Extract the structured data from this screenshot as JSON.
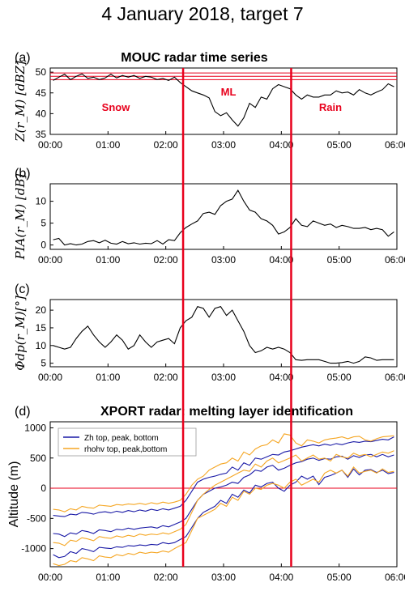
{
  "figure": {
    "title": "4 January 2018, target 7"
  },
  "colors": {
    "red": "#e8001c",
    "blue": "#1a1aa6",
    "orange": "#f5a623",
    "black": "#000000"
  },
  "panels": [
    {
      "id": "a",
      "letter": "(a)",
      "title": "MOUC radar time series",
      "ylabel": "Z(r_M) [dBZ]",
      "yticks": [
        "35",
        "40",
        "45",
        "50"
      ],
      "annotations": [
        "Snow",
        "ML",
        "Rain"
      ]
    },
    {
      "id": "b",
      "letter": "(b)",
      "title": "",
      "ylabel": "PIA(r_M) [dB]",
      "yticks": [
        "0",
        "5",
        "10"
      ]
    },
    {
      "id": "c",
      "letter": "(c)",
      "title": "",
      "ylabel": "Φdp(r_M)[°]",
      "yticks": [
        "5",
        "10",
        "15",
        "20"
      ]
    },
    {
      "id": "d",
      "letter": "(d)",
      "title": "XPORT radar: melting  layer identification",
      "ylabel": "Altitude (m)",
      "yticks": [
        "-1000",
        "-500",
        "0",
        "500",
        "1000"
      ],
      "legend": [
        "Zh top, peak, bottom",
        "rhohv  top, peak,bottom"
      ]
    }
  ],
  "xticks": [
    "00:00",
    "01:00",
    "02:00",
    "03:00",
    "04:00",
    "05:00",
    "06:00"
  ],
  "chart_data": [
    {
      "type": "line",
      "panel": "a",
      "title": "MOUC radar time series",
      "xlabel": "",
      "ylabel": "Z(r_M) [dBZ]",
      "xlim": [
        0,
        6
      ],
      "ylim": [
        35,
        51
      ],
      "grid": false,
      "series": [
        {
          "x": [
            0.05,
            0.15,
            0.25,
            0.35,
            0.45,
            0.55,
            0.65,
            0.75,
            0.85,
            0.95,
            1.05,
            1.15,
            1.25,
            1.35,
            1.45,
            1.55,
            1.65,
            1.75,
            1.85,
            1.95,
            2.05,
            2.15,
            2.25,
            2.35,
            2.45,
            2.55,
            2.65,
            2.75,
            2.85,
            2.95,
            3.05,
            3.15,
            3.25,
            3.35,
            3.45,
            3.55,
            3.65,
            3.75,
            3.85,
            3.95,
            4.05,
            4.15,
            4.25,
            4.35,
            4.45,
            4.55,
            4.65,
            4.75,
            4.85,
            4.95,
            5.05,
            5.15,
            5.25,
            5.35,
            5.45,
            5.55,
            5.65,
            5.75,
            5.85,
            5.95
          ],
          "y": [
            48,
            48.8,
            49.5,
            48.2,
            49,
            49.6,
            48.5,
            48.8,
            48.2,
            48.6,
            49.5,
            48.6,
            49.2,
            48.8,
            49.2,
            48.5,
            49,
            48.8,
            48.2,
            48.5,
            48,
            48.8,
            47.5,
            46.5,
            45.5,
            45,
            44.5,
            43.8,
            40.5,
            39.5,
            40.2,
            38.5,
            37,
            39,
            42.5,
            41.5,
            44,
            43.5,
            46,
            47,
            46.5,
            46,
            44.5,
            43.5,
            44.5,
            44,
            44,
            44.5,
            44.5,
            45.5,
            45,
            45.2,
            44.5,
            45.8,
            45,
            44.5,
            45.2,
            45.8,
            47.2,
            46.5
          ]
        }
      ],
      "reference_lines": [
        49.8,
        49,
        48.2
      ],
      "vertical_markers": [
        2.3,
        4.17
      ],
      "annotations": [
        "Snow",
        "ML",
        "Rain"
      ]
    },
    {
      "type": "line",
      "panel": "b",
      "xlabel": "",
      "ylabel": "PIA(r_M) [dB]",
      "xlim": [
        0,
        6
      ],
      "ylim": [
        -1,
        14
      ],
      "series": [
        {
          "x": [
            0.05,
            0.15,
            0.25,
            0.35,
            0.45,
            0.55,
            0.65,
            0.75,
            0.85,
            0.95,
            1.05,
            1.15,
            1.25,
            1.35,
            1.45,
            1.55,
            1.65,
            1.75,
            1.85,
            1.95,
            2.05,
            2.15,
            2.25,
            2.35,
            2.45,
            2.55,
            2.65,
            2.75,
            2.85,
            2.95,
            3.05,
            3.15,
            3.25,
            3.35,
            3.45,
            3.55,
            3.65,
            3.75,
            3.85,
            3.95,
            4.05,
            4.15,
            4.25,
            4.35,
            4.45,
            4.55,
            4.65,
            4.75,
            4.85,
            4.95,
            5.05,
            5.15,
            5.25,
            5.35,
            5.45,
            5.55,
            5.65,
            5.75,
            5.85,
            5.95
          ],
          "y": [
            1.2,
            1.5,
            0,
            0.3,
            0,
            0.2,
            0.8,
            1,
            0.5,
            1.1,
            0.4,
            0.2,
            0.8,
            0.3,
            0.5,
            0.2,
            0.4,
            0.3,
            1,
            0.2,
            1.2,
            1,
            2.8,
            4,
            4.8,
            5.5,
            7.2,
            7.5,
            7,
            9,
            10,
            10.5,
            12.5,
            10,
            8,
            7.5,
            6,
            5.5,
            4.5,
            2.5,
            3,
            4,
            6,
            4.5,
            4.2,
            5.5,
            5,
            4.5,
            4.8,
            4,
            4.5,
            4.2,
            3.8,
            3.8,
            4,
            3.5,
            3.8,
            3.5,
            2,
            3
          ]
        }
      ],
      "vertical_markers": [
        2.3,
        4.17
      ]
    },
    {
      "type": "line",
      "panel": "c",
      "xlabel": "",
      "ylabel": "Φdp(r_M)[°]",
      "xlim": [
        0,
        6
      ],
      "ylim": [
        4,
        23
      ],
      "series": [
        {
          "x": [
            0.05,
            0.15,
            0.25,
            0.35,
            0.45,
            0.55,
            0.65,
            0.75,
            0.85,
            0.95,
            1.05,
            1.15,
            1.25,
            1.35,
            1.45,
            1.55,
            1.65,
            1.75,
            1.85,
            1.95,
            2.05,
            2.15,
            2.25,
            2.35,
            2.45,
            2.55,
            2.65,
            2.75,
            2.85,
            2.95,
            3.05,
            3.15,
            3.25,
            3.35,
            3.45,
            3.55,
            3.65,
            3.75,
            3.85,
            3.95,
            4.05,
            4.15,
            4.25,
            4.35,
            4.45,
            4.55,
            4.65,
            4.75,
            4.85,
            4.95,
            5.05,
            5.15,
            5.25,
            5.35,
            5.45,
            5.55,
            5.65,
            5.75,
            5.85,
            5.95
          ],
          "y": [
            10,
            9.5,
            9,
            9.5,
            12,
            14,
            15.5,
            13,
            11,
            9.5,
            11,
            13,
            11.5,
            9,
            10,
            13,
            11,
            9.5,
            11,
            11.5,
            12,
            10.5,
            15,
            17,
            18,
            21,
            20.5,
            18,
            20.5,
            21,
            18.5,
            20,
            17,
            14,
            10,
            8,
            8.5,
            9.5,
            9,
            9.5,
            9,
            8,
            6,
            5.8,
            6,
            6,
            6,
            5.5,
            5,
            5,
            5.2,
            5.5,
            5,
            5.5,
            6.8,
            6.5,
            5.8,
            6,
            6,
            6
          ]
        }
      ],
      "vertical_markers": [
        2.3,
        4.17
      ]
    },
    {
      "type": "line",
      "panel": "d",
      "title": "XPORT radar: melting  layer identification",
      "xlabel": "",
      "ylabel": "Altitude (m)",
      "xlim": [
        0,
        6
      ],
      "ylim": [
        -1300,
        1100
      ],
      "legend_position": "top-left",
      "series": [
        {
          "name": "Zh top, peak, bottom",
          "values_top": [
            -450,
            -460,
            -470,
            -430,
            -440,
            -400,
            -410,
            -430,
            -400,
            -390,
            -410,
            -380,
            -400,
            -370,
            -390,
            -360,
            -380,
            -350,
            -370,
            -340,
            -360,
            -330,
            -300,
            -200,
            -50,
            100,
            150,
            180,
            200,
            230,
            250,
            350,
            300,
            420,
            380,
            500,
            480,
            520,
            560,
            550,
            600,
            620,
            650,
            680,
            700,
            720,
            700,
            730,
            710,
            740,
            720,
            750,
            770,
            760,
            780,
            770,
            790,
            810,
            800,
            850
          ],
          "values_peak": [
            -750,
            -760,
            -800,
            -740,
            -760,
            -700,
            -720,
            -750,
            -690,
            -700,
            -720,
            -680,
            -690,
            -660,
            -680,
            -660,
            -650,
            -640,
            -660,
            -620,
            -640,
            -600,
            -560,
            -500,
            -350,
            -200,
            -100,
            -50,
            0,
            20,
            50,
            100,
            80,
            180,
            220,
            300,
            280,
            350,
            380,
            300,
            330,
            380,
            420,
            440,
            480,
            500,
            460,
            490,
            480,
            520,
            530,
            480,
            540,
            510,
            550,
            560,
            520,
            560,
            520,
            550
          ],
          "values_bottom": [
            -1100,
            -1150,
            -1130,
            -1050,
            -1080,
            -1000,
            -1020,
            -1050,
            -980,
            -990,
            -1000,
            -970,
            -980,
            -950,
            -960,
            -940,
            -950,
            -930,
            -940,
            -900,
            -920,
            -900,
            -850,
            -800,
            -650,
            -500,
            -400,
            -350,
            -300,
            -200,
            -250,
            -100,
            -150,
            -30,
            -80,
            50,
            20,
            80,
            100,
            0,
            -50,
            50,
            100,
            200,
            150,
            200,
            60,
            180,
            210,
            250,
            300,
            180,
            320,
            220,
            300,
            310,
            260,
            300,
            240,
            260
          ]
        },
        {
          "name": "rhohv  top, peak,bottom",
          "values_top": [
            -350,
            -360,
            -390,
            -340,
            -360,
            -300,
            -320,
            -330,
            -280,
            -290,
            -300,
            -270,
            -280,
            -260,
            -270,
            -250,
            -270,
            -240,
            -260,
            -230,
            -250,
            -230,
            -200,
            -100,
            50,
            150,
            200,
            300,
            350,
            400,
            420,
            500,
            450,
            600,
            550,
            650,
            700,
            720,
            800,
            750,
            900,
            880,
            750,
            700,
            800,
            780,
            750,
            800,
            820,
            830,
            850,
            820,
            850,
            860,
            800,
            780,
            820,
            850,
            860,
            870
          ],
          "values_peak": [
            -900,
            -910,
            -950,
            -860,
            -880,
            -820,
            -840,
            -870,
            -800,
            -820,
            -830,
            -790,
            -810,
            -780,
            -800,
            -760,
            -780,
            -760,
            -770,
            -740,
            -760,
            -720,
            -680,
            -600,
            -400,
            -200,
            -100,
            -20,
            50,
            100,
            150,
            200,
            250,
            300,
            280,
            400,
            350,
            450,
            500,
            420,
            460,
            500,
            550,
            450,
            500,
            550,
            480,
            500,
            450,
            560,
            520,
            500,
            580,
            540,
            560,
            520,
            560,
            600,
            580,
            620
          ],
          "values_bottom": [
            -1250,
            -1280,
            -1260,
            -1200,
            -1220,
            -1150,
            -1170,
            -1200,
            -1120,
            -1140,
            -1150,
            -1100,
            -1120,
            -1080,
            -1100,
            -1060,
            -1080,
            -1060,
            -1070,
            -1040,
            -1060,
            -1000,
            -950,
            -900,
            -700,
            -500,
            -450,
            -400,
            -350,
            -250,
            -300,
            -150,
            -200,
            -50,
            -100,
            0,
            -20,
            50,
            80,
            50,
            0,
            100,
            150,
            50,
            100,
            150,
            100,
            250,
            300,
            250,
            300,
            200,
            350,
            250,
            280,
            300,
            250,
            320,
            260,
            280
          ]
        }
      ],
      "reference_lines": [
        0
      ],
      "vertical_markers": [
        2.3,
        4.17
      ]
    }
  ]
}
